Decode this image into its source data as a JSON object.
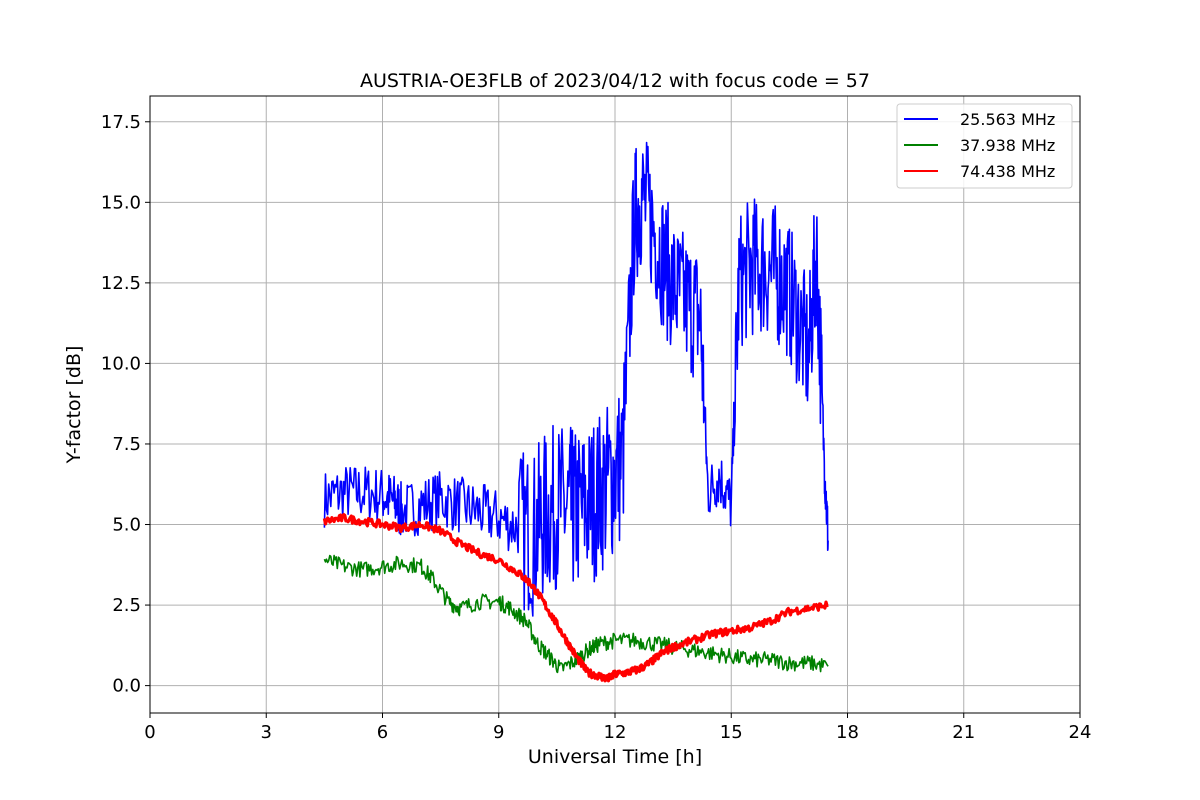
{
  "chart_data": {
    "type": "line",
    "title": "AUSTRIA-OE3FLB of 2023/04/12 with focus code = 57",
    "xlabel": "Universal Time [h]",
    "ylabel": "Y-factor [dB]",
    "xlim": [
      0,
      24
    ],
    "ylim": [
      -0.85,
      18.3
    ],
    "xticks": [
      0,
      3,
      6,
      9,
      12,
      15,
      18,
      21,
      24
    ],
    "xtick_labels": [
      "0",
      "3",
      "6",
      "9",
      "12",
      "15",
      "18",
      "21",
      "24"
    ],
    "yticks": [
      0,
      2.5,
      5,
      7.5,
      10,
      12.5,
      15,
      17.5
    ],
    "ytick_labels": [
      "0.0",
      "2.5",
      "5.0",
      "7.5",
      "10.0",
      "12.5",
      "15.0",
      "17.5"
    ],
    "grid": true,
    "legend_position": "top-right",
    "series": [
      {
        "name": "25.563 MHz",
        "color": "#0000ff",
        "x": [
          4.5,
          5.0,
          5.5,
          6.0,
          6.3,
          6.5,
          7.0,
          7.5,
          8.0,
          8.5,
          9.0,
          9.5,
          9.9,
          10.2,
          10.5,
          10.8,
          11.0,
          11.3,
          11.6,
          11.9,
          12.2,
          12.5,
          12.7,
          13.0,
          13.3,
          13.6,
          13.9,
          14.2,
          14.4,
          14.7,
          15.0,
          15.2,
          15.5,
          15.8,
          16.1,
          16.4,
          16.7,
          17.0,
          17.2,
          17.4,
          17.5
        ],
        "y": [
          5.8,
          6.0,
          6.0,
          5.9,
          5.7,
          5.4,
          5.6,
          5.8,
          5.6,
          5.4,
          5.2,
          4.9,
          4.7,
          5.3,
          5.6,
          5.5,
          5.4,
          5.6,
          6.0,
          6.4,
          7.0,
          14.5,
          15.2,
          14.2,
          13.0,
          12.2,
          11.8,
          11.5,
          6.0,
          6.5,
          5.6,
          12.5,
          13.0,
          13.0,
          12.8,
          12.5,
          11.5,
          10.2,
          13.5,
          7.0,
          4.5
        ]
      },
      {
        "name": "37.938 MHz",
        "color": "#008000",
        "x": [
          4.5,
          5.0,
          5.5,
          6.0,
          6.5,
          7.0,
          7.3,
          7.7,
          8.0,
          8.5,
          9.0,
          9.3,
          9.7,
          10.0,
          10.3,
          10.6,
          11.0,
          11.3,
          11.6,
          12.0,
          12.5,
          13.0,
          13.5,
          14.0,
          14.5,
          15.0,
          15.5,
          16.0,
          16.5,
          17.0,
          17.5
        ],
        "y": [
          3.9,
          3.7,
          3.6,
          3.7,
          3.8,
          3.7,
          3.3,
          2.6,
          2.4,
          2.6,
          2.6,
          2.4,
          2.0,
          1.3,
          0.9,
          0.5,
          0.8,
          1.1,
          1.3,
          1.4,
          1.4,
          1.3,
          1.2,
          1.1,
          1.0,
          0.9,
          0.8,
          0.8,
          0.7,
          0.7,
          0.6
        ]
      },
      {
        "name": "74.438 MHz",
        "color": "#ff0000",
        "x": [
          4.5,
          5.0,
          5.5,
          6.0,
          6.5,
          7.0,
          7.5,
          8.0,
          8.5,
          9.0,
          9.5,
          9.8,
          10.1,
          10.4,
          10.7,
          11.0,
          11.3,
          11.6,
          11.8,
          12.0,
          12.3,
          12.6,
          12.9,
          13.2,
          13.5,
          14.0,
          14.5,
          15.0,
          15.5,
          16.0,
          16.5,
          17.0,
          17.5
        ],
        "y": [
          5.1,
          5.2,
          5.1,
          5.0,
          4.9,
          5.0,
          4.8,
          4.4,
          4.1,
          3.9,
          3.5,
          3.2,
          2.7,
          2.1,
          1.5,
          0.9,
          0.4,
          0.3,
          0.2,
          0.35,
          0.4,
          0.5,
          0.7,
          1.0,
          1.2,
          1.4,
          1.6,
          1.7,
          1.8,
          2.0,
          2.3,
          2.4,
          2.5
        ]
      }
    ]
  }
}
